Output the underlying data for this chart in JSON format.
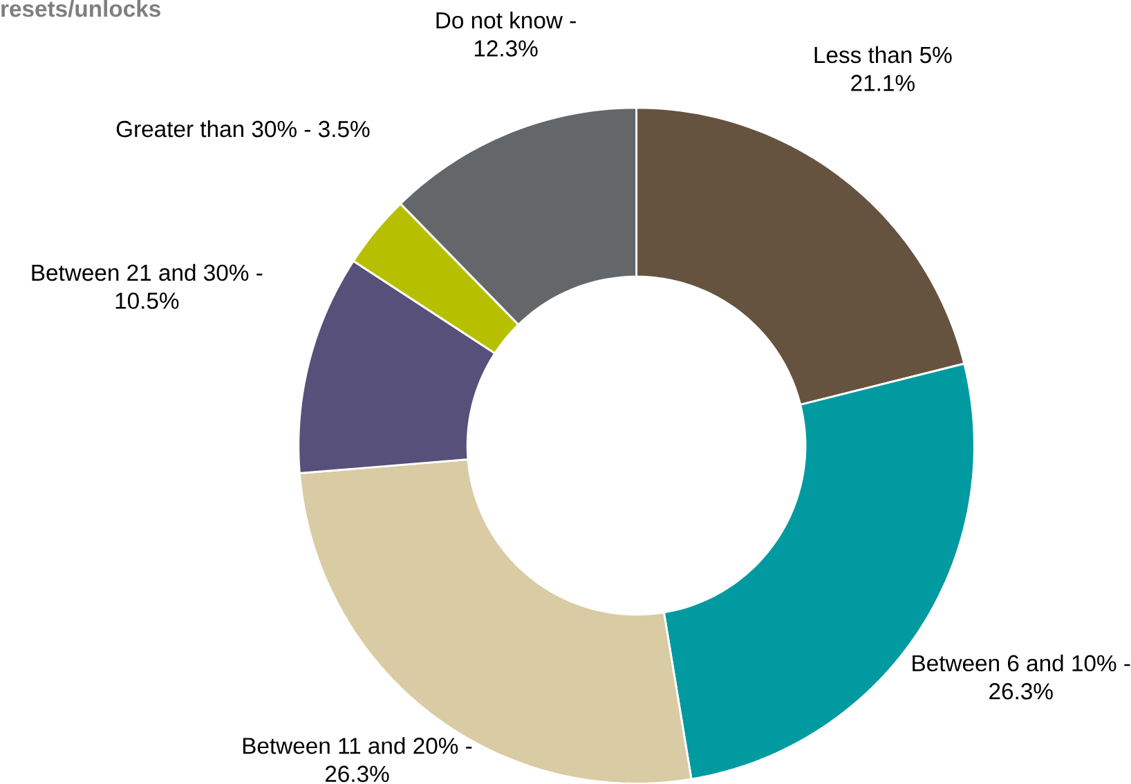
{
  "chart_data": {
    "type": "donut",
    "title": "resets/unlocks",
    "categories": [
      "Less than 5%",
      "Between 6 and 10% -",
      "Between 11 and 20% -",
      "Between 21 and 30% -",
      "Greater than 30% -",
      "Do not know -"
    ],
    "values": [
      21.1,
      26.3,
      26.3,
      10.5,
      3.5,
      12.3
    ],
    "value_labels": [
      "21.1%",
      "26.3%",
      "26.3%",
      "10.5%",
      "3.5%",
      "12.3%"
    ],
    "colors": [
      "#66533f",
      "#009aa0",
      "#d9cba3",
      "#57507a",
      "#b7c000",
      "#63676a"
    ]
  }
}
